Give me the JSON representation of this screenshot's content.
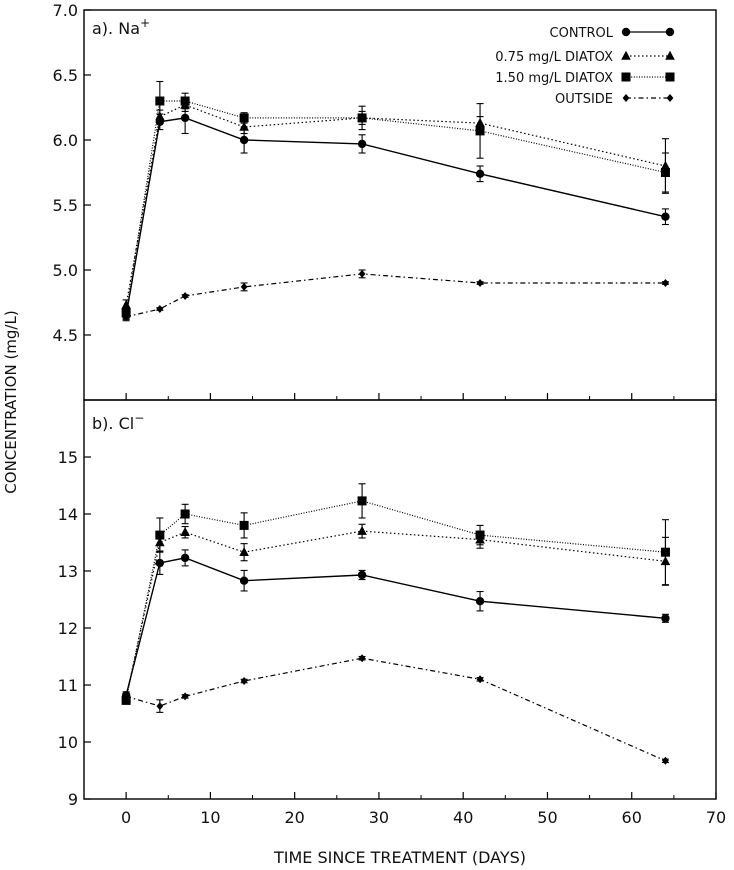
{
  "figure": {
    "ylabel": "CONCENTRATION (mg/L)",
    "xlabel": "TIME SINCE TREATMENT (DAYS)",
    "x_ticks": [
      "0",
      "10",
      "20",
      "30",
      "40",
      "50",
      "60",
      "70"
    ]
  },
  "legend": {
    "entries": [
      {
        "label": "CONTROL",
        "marker": "circle",
        "dash": "solid"
      },
      {
        "label": "0.75 mg/L DIATOX",
        "marker": "triangle",
        "dash": "dotted"
      },
      {
        "label": "1.50 mg/L DIATOX",
        "marker": "square",
        "dash": "finedot"
      },
      {
        "label": "OUTSIDE",
        "marker": "diamond",
        "dash": "dashdot"
      }
    ]
  },
  "chart_data": [
    {
      "type": "line",
      "panel_label": "a). Na",
      "ion_superscript": "+",
      "ylim": [
        4.0,
        7.0
      ],
      "y_ticks": [
        "4.5",
        "5.0",
        "5.5",
        "6.0",
        "6.5",
        "7.0"
      ],
      "xlim": [
        -5,
        70
      ],
      "x": [
        0,
        4,
        7,
        14,
        28,
        42,
        64
      ],
      "series": [
        {
          "name": "CONTROL",
          "values": [
            4.65,
            6.14,
            6.17,
            6.0,
            5.97,
            5.74,
            5.41
          ],
          "errors": [
            0.04,
            0.06,
            0.12,
            0.1,
            0.07,
            0.06,
            0.06
          ]
        },
        {
          "name": "0.75 mg/L DIATOX",
          "values": [
            4.73,
            6.18,
            6.27,
            6.1,
            6.17,
            6.13,
            5.8
          ],
          "errors": [
            0.04,
            0.05,
            0.05,
            0.05,
            0.05,
            0.05,
            0.21
          ]
        },
        {
          "name": "1.50 mg/L DIATOX",
          "values": [
            4.67,
            6.3,
            6.3,
            6.17,
            6.17,
            6.07,
            5.75
          ],
          "errors": [
            0.04,
            0.15,
            0.06,
            0.04,
            0.09,
            0.21,
            0.15
          ]
        },
        {
          "name": "OUTSIDE",
          "values": [
            4.64,
            4.7,
            4.8,
            4.87,
            4.97,
            4.9,
            4.9
          ],
          "errors": [
            0.02,
            0.01,
            0.01,
            0.03,
            0.03,
            0.01,
            0.01
          ]
        }
      ]
    },
    {
      "type": "line",
      "panel_label": "b). Cl",
      "ion_superscript": "−",
      "ylim": [
        9,
        16
      ],
      "y_ticks": [
        "9",
        "10",
        "11",
        "12",
        "13",
        "14",
        "15"
      ],
      "xlim": [
        -5,
        70
      ],
      "x": [
        0,
        4,
        7,
        14,
        28,
        42,
        64
      ],
      "series": [
        {
          "name": "CONTROL",
          "values": [
            10.82,
            13.14,
            13.23,
            12.83,
            12.93,
            12.47,
            12.17
          ],
          "errors": [
            0.06,
            0.2,
            0.14,
            0.18,
            0.08,
            0.17,
            0.07
          ]
        },
        {
          "name": "0.75 mg/L DIATOX",
          "values": [
            10.78,
            13.5,
            13.68,
            13.33,
            13.7,
            13.55,
            13.17
          ],
          "errors": [
            0.06,
            0.15,
            0.1,
            0.15,
            0.12,
            0.15,
            0.42
          ]
        },
        {
          "name": "1.50 mg/L DIATOX",
          "values": [
            10.73,
            13.63,
            14.0,
            13.8,
            14.23,
            13.63,
            13.33
          ],
          "errors": [
            0.06,
            0.3,
            0.17,
            0.22,
            0.3,
            0.17,
            0.57
          ]
        },
        {
          "name": "OUTSIDE",
          "values": [
            10.8,
            10.63,
            10.8,
            11.07,
            11.47,
            11.1,
            9.67
          ],
          "errors": [
            0.04,
            0.11,
            0.03,
            0.03,
            0.03,
            0.03,
            0.03
          ]
        }
      ]
    }
  ]
}
